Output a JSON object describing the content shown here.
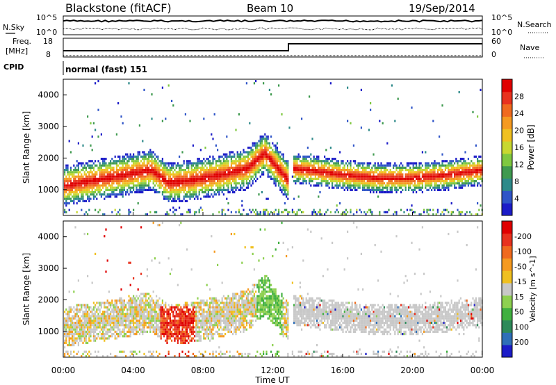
{
  "header": {
    "station": "Blackstone (fitACF)",
    "beam": "Beam 10",
    "date": "19/Sep/2014"
  },
  "noise_panel": {
    "left_label": "N.Sky",
    "right_label": "N.Search",
    "left_ticks": [
      "10^5",
      "10^0"
    ],
    "right_ticks": [
      "10^5",
      "10^0"
    ]
  },
  "freq_panel": {
    "left_label_1": "Freq.",
    "left_label_2": "[MHz]",
    "right_label": "Nave",
    "left_ticks": [
      "18",
      "8"
    ],
    "right_ticks": [
      "60",
      "0"
    ]
  },
  "cpid_panel": {
    "label": "CPID",
    "mode": "normal (fast) 151"
  },
  "time_axis": {
    "label": "Time UT",
    "ticks": [
      "00:00",
      "04:00",
      "08:00",
      "12:00",
      "16:00",
      "20:00",
      "00:00"
    ]
  },
  "chart_data": [
    {
      "type": "heatmap",
      "title": "Power",
      "ylabel": "Slant Range [km]",
      "xlabel": "Time UT",
      "x_range_hours": [
        0,
        24
      ],
      "ylim": [
        180,
        4500
      ],
      "yticks": [
        1000,
        2000,
        3000,
        4000
      ],
      "colorbar": {
        "label": "Power [dB]",
        "ticks": [
          4,
          8,
          12,
          16,
          20,
          24,
          28
        ],
        "colors": [
          "#1c1cc8",
          "#2f55c8",
          "#2e8a8a",
          "#3f9a4f",
          "#7fc840",
          "#c8d830",
          "#f0c020",
          "#f59a20",
          "#f06a1e",
          "#e8321e",
          "#e00000"
        ]
      },
      "bands": [
        {
          "x": [
            0.0,
            3.0,
            5.0,
            6.0,
            7.0,
            9.0,
            10.5,
            11.5,
            12.9
          ],
          "y": [
            1150,
            1450,
            1650,
            1250,
            1300,
            1500,
            1700,
            2200,
            1300
          ]
        },
        {
          "x": [
            13.1,
            14.0,
            16.0,
            18.0,
            20.0,
            22.0,
            24.0
          ],
          "y": [
            1700,
            1650,
            1500,
            1400,
            1400,
            1500,
            1650
          ]
        }
      ]
    },
    {
      "type": "heatmap",
      "title": "Velocity",
      "ylabel": "Slant Range [km]",
      "xlabel": "Time UT",
      "x_range_hours": [
        0,
        24
      ],
      "ylim": [
        180,
        4500
      ],
      "yticks": [
        1000,
        2000,
        3000,
        4000
      ],
      "colorbar": {
        "label": "Velocity [m s^-1]",
        "ticks": [
          200,
          100,
          50,
          15,
          -15,
          -50,
          -100,
          -200
        ],
        "colors": [
          "#1c1cc8",
          "#2f6fb8",
          "#2e8a5a",
          "#40b040",
          "#8ed050",
          "#c8c8c8",
          "#f0c020",
          "#f59a20",
          "#f06a1e",
          "#e8321e",
          "#e00000"
        ]
      }
    }
  ]
}
